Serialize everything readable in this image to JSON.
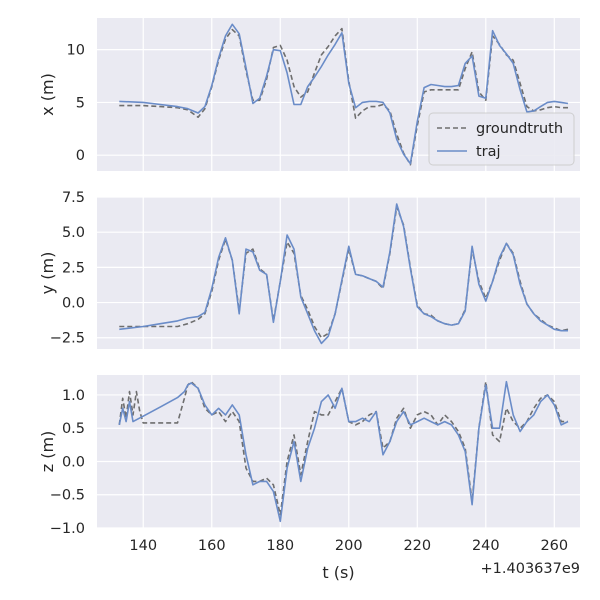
{
  "chart_data": [
    {
      "type": "line",
      "ylabel": "x (m)",
      "ylim": [
        -1.5,
        13.0
      ],
      "yticks": [
        0,
        5,
        10
      ],
      "ytick_labels": [
        "0",
        "5",
        "10"
      ],
      "grid": true,
      "legend": {
        "placement": "lower-right",
        "entries": [
          "groundtruth",
          "traj"
        ]
      },
      "series": [
        {
          "name": "groundtruth",
          "style": "dashed",
          "color": "#6e6e6e",
          "x": [
            133,
            140,
            145,
            150,
            153,
            156,
            158,
            160,
            162,
            164,
            166,
            168,
            170,
            172,
            174,
            176,
            178,
            180,
            182,
            184,
            186,
            188,
            190,
            192,
            194,
            196,
            198,
            200,
            202,
            204,
            206,
            208,
            210,
            212,
            214,
            216,
            218,
            220,
            222,
            224,
            226,
            228,
            230,
            232,
            234,
            236,
            238,
            240,
            242,
            244,
            246,
            248,
            250,
            252,
            254,
            256,
            258,
            260,
            262,
            264
          ],
          "y": [
            4.7,
            4.7,
            4.6,
            4.5,
            4.3,
            3.6,
            4.4,
            6.5,
            9.0,
            11.0,
            11.9,
            11.3,
            8.0,
            5.2,
            5.2,
            7.2,
            10.2,
            10.4,
            9.0,
            6.5,
            5.5,
            6.0,
            7.8,
            9.5,
            10.3,
            11.3,
            12.0,
            7.0,
            3.5,
            4.2,
            4.6,
            4.6,
            4.8,
            4.2,
            2.0,
            0.2,
            -0.9,
            2.8,
            6.0,
            6.2,
            6.2,
            6.2,
            6.2,
            6.2,
            8.2,
            9.8,
            6.0,
            5.2,
            11.3,
            10.5,
            9.5,
            9.0,
            6.8,
            4.6,
            4.2,
            4.3,
            4.5,
            4.6,
            4.5,
            4.5
          ]
        },
        {
          "name": "traj",
          "style": "solid",
          "color": "#6a8cc8",
          "x": [
            133,
            140,
            145,
            150,
            153,
            156,
            158,
            160,
            162,
            164,
            166,
            168,
            170,
            172,
            174,
            176,
            178,
            180,
            182,
            184,
            186,
            188,
            190,
            192,
            194,
            196,
            198,
            200,
            202,
            204,
            206,
            208,
            210,
            212,
            214,
            216,
            218,
            220,
            222,
            224,
            226,
            228,
            230,
            232,
            234,
            236,
            238,
            240,
            242,
            244,
            246,
            248,
            250,
            252,
            254,
            256,
            258,
            260,
            262,
            264
          ],
          "y": [
            5.1,
            5.0,
            4.8,
            4.6,
            4.4,
            4.0,
            4.6,
            6.6,
            9.2,
            11.3,
            12.4,
            11.5,
            8.3,
            4.9,
            5.4,
            7.5,
            10.0,
            9.9,
            7.8,
            4.8,
            4.8,
            6.5,
            7.4,
            8.4,
            9.5,
            10.5,
            11.6,
            6.8,
            4.5,
            5.0,
            5.1,
            5.1,
            5.0,
            4.0,
            1.5,
            0.1,
            -0.8,
            3.2,
            6.4,
            6.7,
            6.6,
            6.5,
            6.5,
            6.6,
            8.7,
            9.4,
            5.6,
            5.4,
            11.8,
            10.4,
            9.6,
            8.7,
            6.2,
            4.1,
            4.2,
            4.6,
            5.0,
            5.1,
            5.0,
            4.9
          ]
        }
      ]
    },
    {
      "type": "line",
      "ylabel": "y (m)",
      "ylim": [
        -3.3,
        7.5
      ],
      "yticks": [
        -2.5,
        0.0,
        2.5,
        5.0,
        7.5
      ],
      "ytick_labels": [
        "−2.5",
        "0.0",
        "2.5",
        "5.0",
        "7.5"
      ],
      "grid": true,
      "series": [
        {
          "name": "groundtruth",
          "style": "dashed",
          "color": "#6e6e6e",
          "x": [
            133,
            140,
            145,
            150,
            153,
            156,
            158,
            160,
            162,
            164,
            166,
            168,
            170,
            172,
            174,
            176,
            178,
            180,
            182,
            184,
            186,
            188,
            190,
            192,
            194,
            196,
            198,
            200,
            202,
            204,
            206,
            208,
            210,
            212,
            214,
            216,
            218,
            220,
            222,
            224,
            226,
            228,
            230,
            232,
            234,
            236,
            238,
            240,
            242,
            244,
            246,
            248,
            250,
            252,
            254,
            256,
            258,
            260,
            262,
            264
          ],
          "y": [
            -1.7,
            -1.7,
            -1.7,
            -1.7,
            -1.5,
            -1.2,
            -0.8,
            0.8,
            3.0,
            4.5,
            3.0,
            -0.6,
            3.5,
            3.8,
            2.4,
            2.0,
            -1.3,
            1.5,
            4.3,
            3.5,
            0.5,
            -0.5,
            -1.7,
            -2.5,
            -2.2,
            -0.8,
            1.5,
            3.8,
            2.0,
            1.9,
            1.7,
            1.5,
            1.0,
            3.5,
            6.8,
            5.5,
            2.5,
            -0.2,
            -0.8,
            -0.9,
            -1.3,
            -1.5,
            -1.6,
            -1.5,
            -0.5,
            3.8,
            1.5,
            0.3,
            1.5,
            3.0,
            4.2,
            3.5,
            1.5,
            -0.1,
            -0.8,
            -1.2,
            -1.6,
            -1.8,
            -2.0,
            -1.9
          ]
        },
        {
          "name": "traj",
          "style": "solid",
          "color": "#6a8cc8",
          "x": [
            133,
            140,
            145,
            150,
            153,
            156,
            158,
            160,
            162,
            164,
            166,
            168,
            170,
            172,
            174,
            176,
            178,
            180,
            182,
            184,
            186,
            188,
            190,
            192,
            194,
            196,
            198,
            200,
            202,
            204,
            206,
            208,
            210,
            212,
            214,
            216,
            218,
            220,
            222,
            224,
            226,
            228,
            230,
            232,
            234,
            236,
            238,
            240,
            242,
            244,
            246,
            248,
            250,
            252,
            254,
            256,
            258,
            260,
            262,
            264
          ],
          "y": [
            -1.9,
            -1.7,
            -1.5,
            -1.3,
            -1.1,
            -1.0,
            -0.7,
            1.0,
            3.2,
            4.6,
            3.0,
            -0.8,
            3.8,
            3.6,
            2.3,
            2.0,
            -1.4,
            1.5,
            4.8,
            3.8,
            0.4,
            -0.8,
            -2.0,
            -2.9,
            -2.4,
            -0.8,
            1.6,
            4.0,
            2.0,
            1.9,
            1.7,
            1.5,
            1.1,
            3.6,
            7.0,
            5.4,
            2.4,
            -0.3,
            -0.8,
            -1.0,
            -1.3,
            -1.5,
            -1.6,
            -1.5,
            -0.6,
            4.0,
            1.3,
            0.1,
            1.5,
            3.2,
            4.2,
            3.4,
            1.3,
            -0.1,
            -0.8,
            -1.3,
            -1.6,
            -1.9,
            -2.0,
            -2.0
          ]
        }
      ]
    },
    {
      "type": "line",
      "ylabel": "z (m)",
      "xlabel": "t (s)",
      "x_offset_label": "+1.403637e9",
      "xlim": [
        126.5,
        267.5
      ],
      "xticks": [
        140,
        160,
        180,
        200,
        220,
        240,
        260
      ],
      "xtick_labels": [
        "140",
        "160",
        "180",
        "200",
        "220",
        "240",
        "260"
      ],
      "ylim": [
        -1.0,
        1.3
      ],
      "yticks": [
        -1.0,
        -0.5,
        0.0,
        0.5,
        1.0
      ],
      "ytick_labels": [
        "−1.0",
        "−0.5",
        "0.0",
        "0.5",
        "1.0"
      ],
      "grid": true,
      "series": [
        {
          "name": "groundtruth",
          "style": "dashed",
          "color": "#6e6e6e",
          "x": [
            133,
            134,
            135,
            136,
            137,
            138,
            139,
            140,
            145,
            150,
            152,
            153,
            154,
            156,
            158,
            160,
            162,
            164,
            166,
            168,
            170,
            172,
            174,
            176,
            178,
            180,
            182,
            184,
            186,
            188,
            190,
            192,
            194,
            196,
            198,
            200,
            202,
            204,
            206,
            208,
            210,
            212,
            214,
            216,
            218,
            220,
            222,
            224,
            226,
            228,
            230,
            232,
            234,
            236,
            238,
            240,
            242,
            244,
            246,
            248,
            250,
            252,
            254,
            256,
            258,
            260,
            262,
            264
          ],
          "y": [
            0.55,
            0.95,
            0.65,
            1.05,
            0.7,
            1.05,
            0.75,
            0.58,
            0.58,
            0.58,
            0.95,
            1.15,
            1.2,
            1.1,
            0.8,
            0.7,
            0.75,
            0.6,
            0.75,
            0.6,
            -0.1,
            -0.3,
            -0.3,
            -0.25,
            -0.35,
            -0.8,
            0.0,
            0.4,
            -0.2,
            0.3,
            0.75,
            0.7,
            0.7,
            0.9,
            1.1,
            0.6,
            0.55,
            0.6,
            0.7,
            0.75,
            0.2,
            0.3,
            0.65,
            0.8,
            0.5,
            0.7,
            0.75,
            0.7,
            0.55,
            0.7,
            0.6,
            0.45,
            0.2,
            -0.6,
            0.5,
            1.2,
            0.4,
            0.3,
            0.8,
            0.6,
            0.5,
            0.6,
            0.8,
            0.95,
            1.0,
            0.9,
            0.6,
            0.6
          ]
        },
        {
          "name": "traj",
          "style": "solid",
          "color": "#6a8cc8",
          "x": [
            133,
            134,
            135,
            136,
            137,
            140,
            145,
            150,
            152,
            153,
            154,
            156,
            158,
            160,
            162,
            164,
            166,
            168,
            170,
            172,
            174,
            176,
            178,
            180,
            182,
            184,
            186,
            188,
            190,
            192,
            194,
            196,
            198,
            200,
            202,
            204,
            206,
            208,
            210,
            212,
            214,
            216,
            218,
            220,
            222,
            224,
            226,
            228,
            230,
            232,
            234,
            236,
            238,
            240,
            242,
            244,
            246,
            248,
            250,
            252,
            254,
            256,
            258,
            260,
            262,
            264
          ],
          "y": [
            0.55,
            0.8,
            0.6,
            0.9,
            0.6,
            0.68,
            0.82,
            0.96,
            1.05,
            1.15,
            1.18,
            1.1,
            0.85,
            0.7,
            0.8,
            0.7,
            0.85,
            0.7,
            0.1,
            -0.35,
            -0.3,
            -0.3,
            -0.45,
            -0.9,
            -0.1,
            0.3,
            -0.3,
            0.2,
            0.5,
            0.9,
            1.0,
            0.8,
            1.1,
            0.6,
            0.6,
            0.65,
            0.6,
            0.75,
            0.1,
            0.3,
            0.6,
            0.75,
            0.55,
            0.6,
            0.65,
            0.6,
            0.55,
            0.6,
            0.55,
            0.4,
            0.15,
            -0.65,
            0.5,
            1.15,
            0.5,
            0.5,
            1.2,
            0.7,
            0.45,
            0.6,
            0.7,
            0.9,
            1.0,
            0.85,
            0.55,
            0.6
          ]
        }
      ]
    }
  ]
}
